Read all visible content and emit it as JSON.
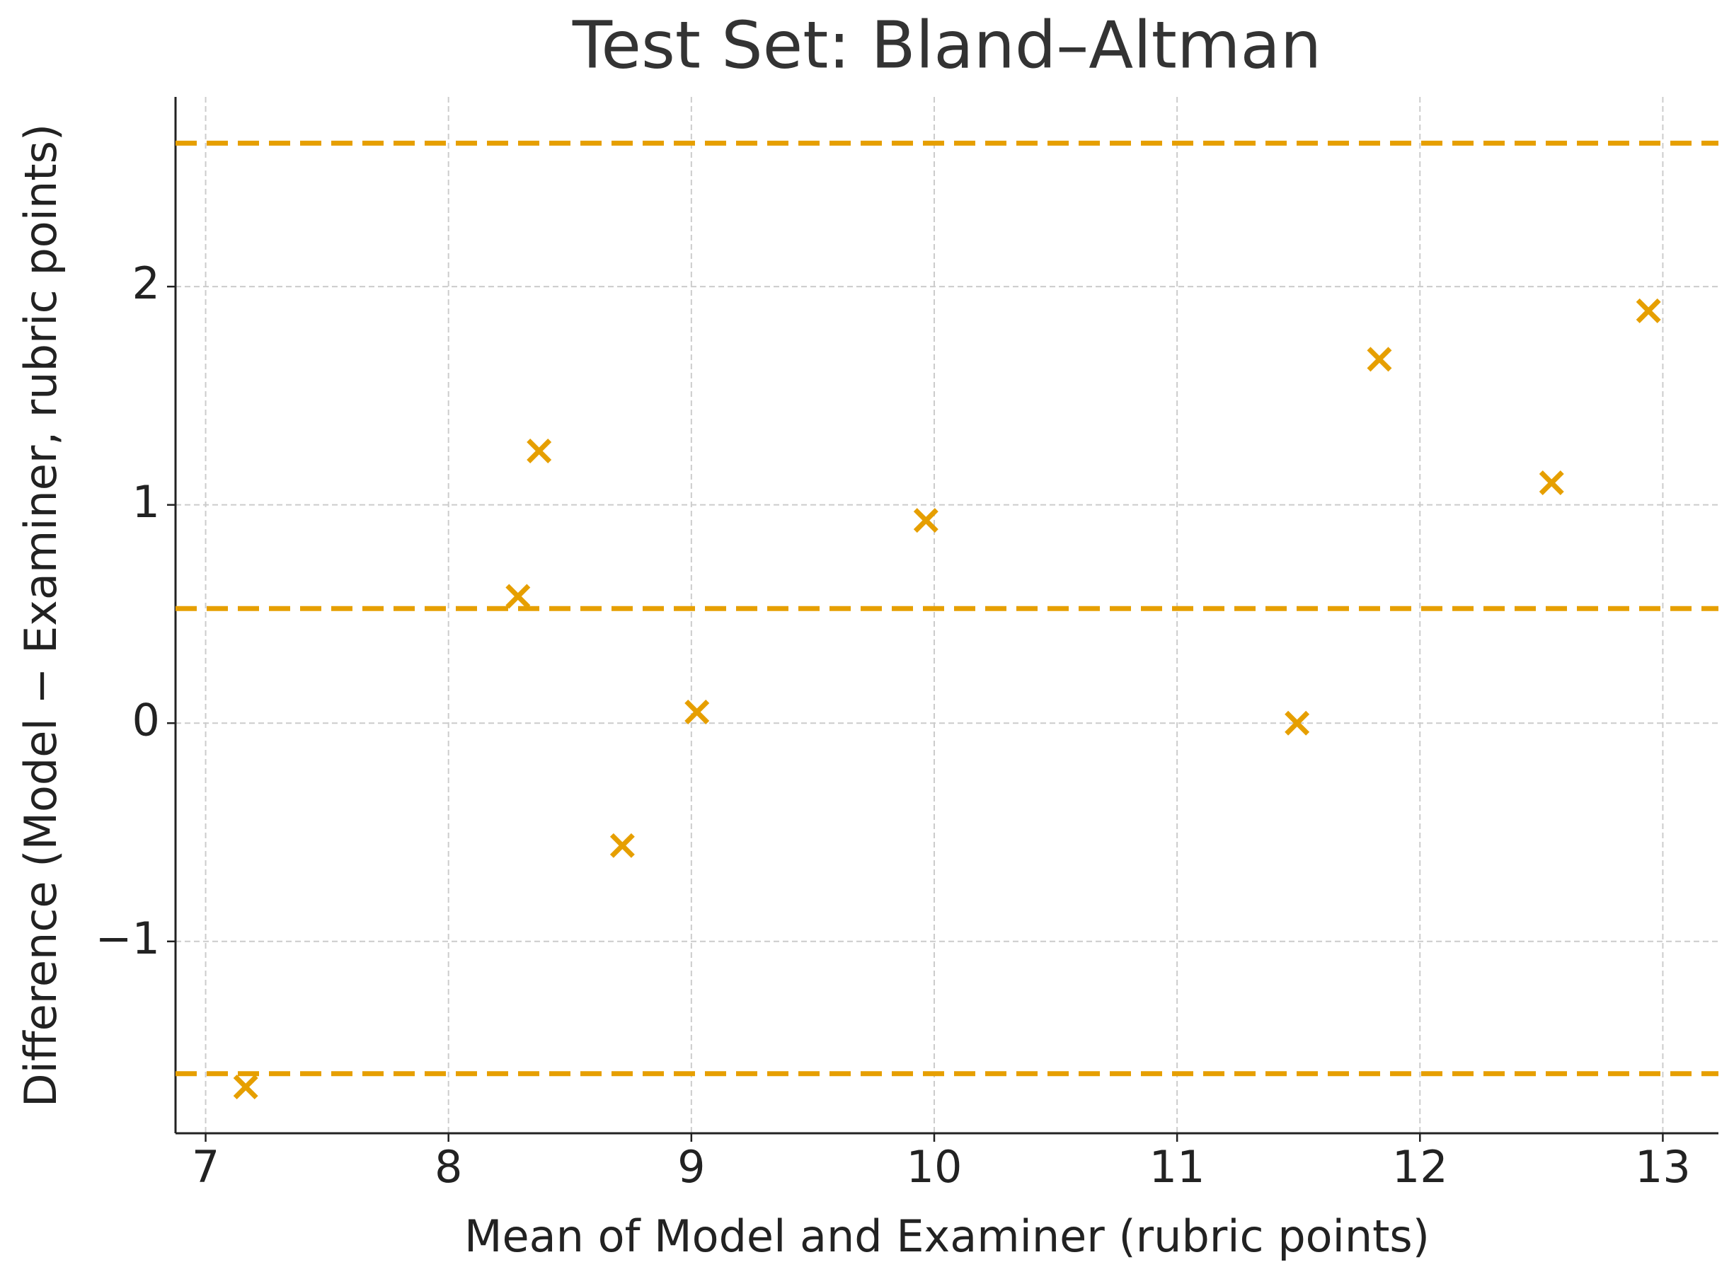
{
  "chart_data": {
    "type": "scatter",
    "title": "Test Set: Bland–Altman",
    "x_label": "Mean of Model and Examiner (rubric points)",
    "y_label": "Difference (Model − Examiner, rubric points)",
    "x": [
      7.165,
      8.286,
      8.373,
      8.716,
      9.023,
      9.966,
      11.494,
      11.833,
      12.542,
      12.941
    ],
    "series": [
      {
        "color": "#e69f00",
        "values": [
          -1.667,
          0.581,
          1.247,
          -0.561,
          0.051,
          0.929,
          0.0,
          1.667,
          1.101,
          1.889
        ]
      }
    ],
    "hlines": [
      0.525,
      2.657,
      -1.606
    ],
    "hline_color": "#e69f00",
    "xlim": [
      6.876,
      13.229
    ],
    "ylim": [
      -1.879,
      2.869
    ],
    "xticks": [
      7,
      8,
      9,
      10,
      11,
      12,
      13
    ],
    "yticks": [
      {
        "value": -1,
        "label": "−1"
      },
      0,
      1,
      2
    ],
    "grid": true
  }
}
